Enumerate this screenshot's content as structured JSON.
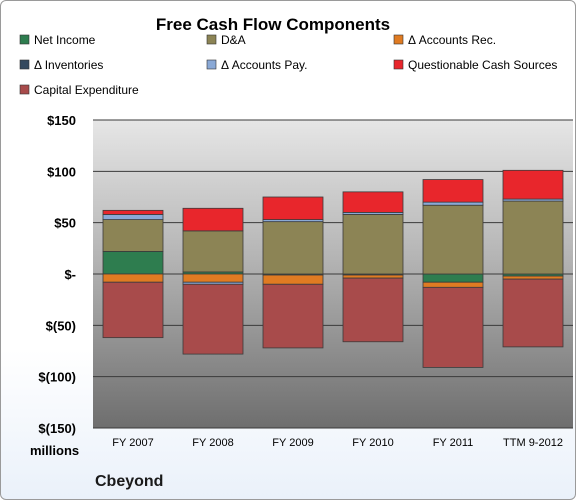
{
  "chart_data": {
    "type": "bar",
    "stacked": true,
    "title": "Free Cash Flow Components",
    "categories": [
      "FY 2007",
      "FY 2008",
      "FY 2009",
      "FY 2010",
      "FY 2011",
      "TTM 9-2012"
    ],
    "series": [
      {
        "name": "Net Income",
        "color": "#2e7d4f",
        "values": [
          22,
          2,
          -1,
          -1,
          -8,
          -2
        ]
      },
      {
        "name": "D&A",
        "color": "#8c8455",
        "values": [
          31,
          40,
          51,
          58,
          67,
          71
        ]
      },
      {
        "name": "Δ Accounts Rec.",
        "color": "#e07b22",
        "values": [
          -8,
          -8,
          -9,
          -3,
          -5,
          -3
        ]
      },
      {
        "name": "Δ Inventories",
        "color": "#34495e",
        "values": [
          0,
          0,
          0,
          0,
          0,
          0
        ]
      },
      {
        "name": "Δ Accounts Pay.",
        "color": "#8aa9d6",
        "values": [
          5,
          -2,
          2,
          2,
          3,
          2
        ]
      },
      {
        "name": "Questionable Cash Sources",
        "color": "#e8262c",
        "values": [
          4,
          22,
          22,
          20,
          22,
          28
        ]
      },
      {
        "name": "Capital Expenditure",
        "color": "#a84b4b",
        "values": [
          -54,
          -68,
          -62,
          -62,
          -78,
          -66
        ]
      }
    ],
    "ylim": [
      -150,
      150
    ],
    "ytick_values": [
      150,
      100,
      50,
      0,
      -50,
      -100,
      -150
    ],
    "ytick_labels": [
      "$150",
      "$100",
      "$50",
      "$-",
      "$(50)",
      "$(100)",
      "$(150)"
    ],
    "unit_label": "millions",
    "legend_position": "top",
    "grid": true
  },
  "company": "Cbeyond"
}
